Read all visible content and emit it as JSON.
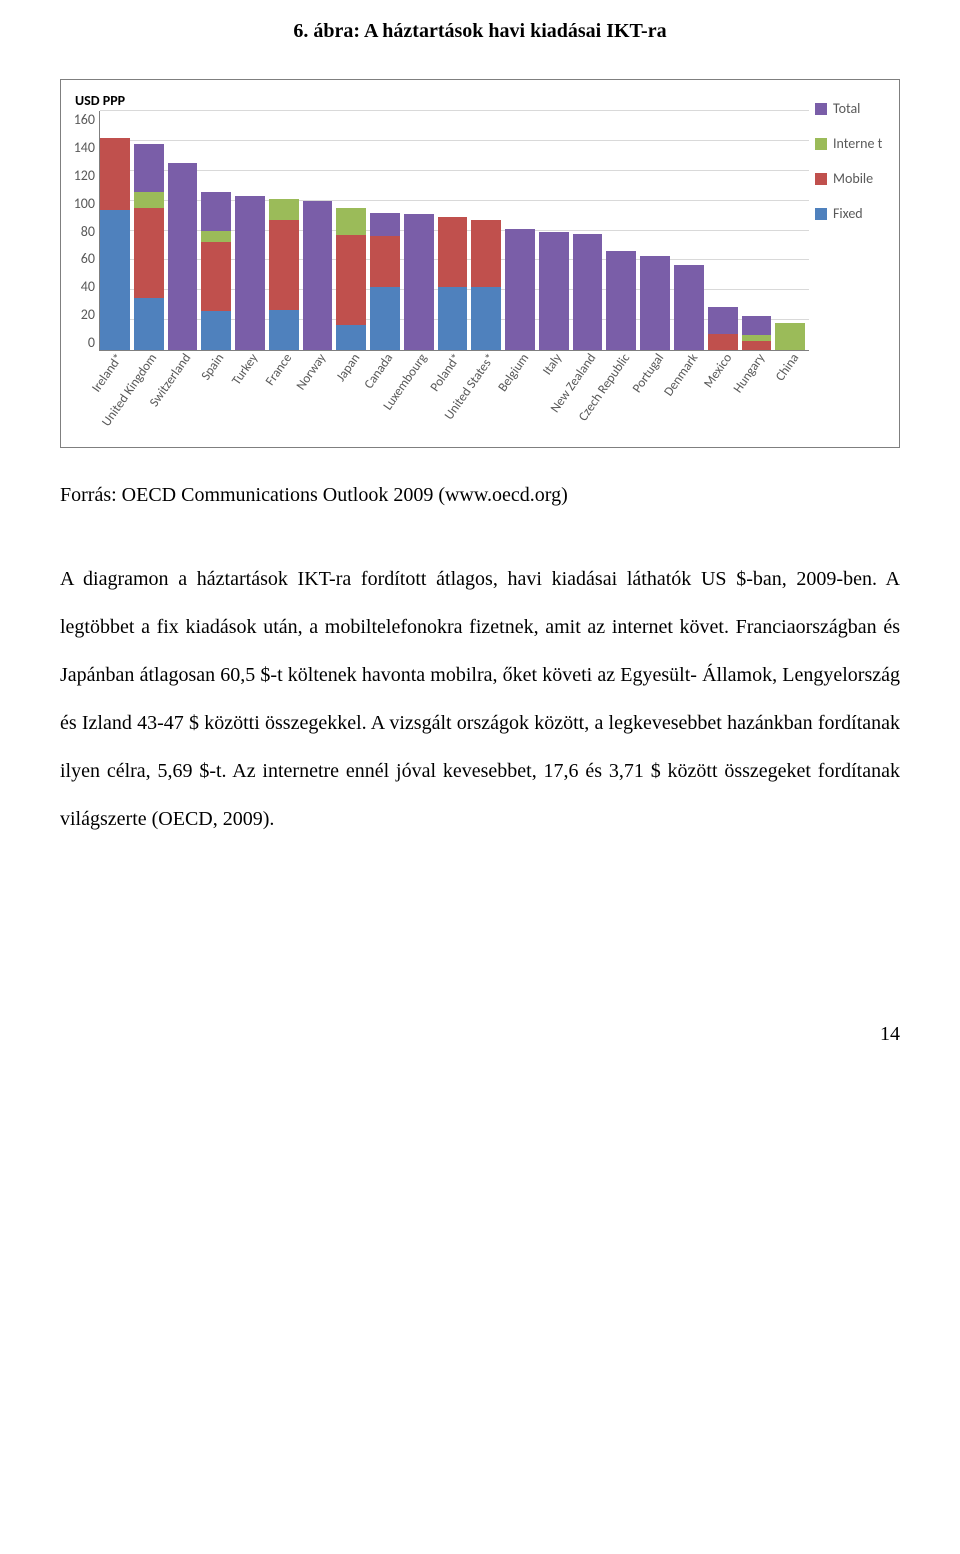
{
  "title": "6. ábra: A háztartások havi kiadásai IKT-ra",
  "chart": {
    "type": "bar-stacked",
    "y_axis_label": "USD PPP",
    "ymax": 160,
    "yticks": [
      160,
      140,
      120,
      100,
      80,
      60,
      40,
      20,
      0
    ],
    "grid_color": "#d9d9d9",
    "axis_line_color": "#7f7f7f",
    "background_color": "#ffffff",
    "tick_font_color": "#595959",
    "legend": [
      {
        "label": "Total",
        "color": "#7a5ea8"
      },
      {
        "label": "Interne t",
        "color": "#9bbb59"
      },
      {
        "label": "Mobile",
        "color": "#c0504d"
      },
      {
        "label": "Fixed",
        "color": "#4f81bd"
      }
    ],
    "series_colors": {
      "fixed": "#4f81bd",
      "mobile": "#c0504d",
      "internet": "#9bbb59",
      "total": "#7a5ea8"
    },
    "categories": [
      "Ireland*",
      "United Kingdom",
      "Switzerland",
      "Spain",
      "Turkey",
      "France",
      "Norway",
      "Japan",
      "Canada",
      "Luxembourg",
      "Poland*",
      "United States*",
      "Belgium",
      "Italy",
      "New Zealand",
      "Czech Republic",
      "Portugal",
      "Denmark",
      "Mexico",
      "Hungary",
      "China"
    ],
    "data": [
      {
        "fixed": 94,
        "mobile": 48,
        "internet": 0,
        "total": 0
      },
      {
        "fixed": 35,
        "mobile": 60,
        "internet": 11,
        "total": 32
      },
      {
        "fixed": 0,
        "mobile": 0,
        "internet": 0,
        "total": 125
      },
      {
        "fixed": 26,
        "mobile": 46,
        "internet": 8,
        "total": 26
      },
      {
        "fixed": 0,
        "mobile": 0,
        "internet": 0,
        "total": 103
      },
      {
        "fixed": 27,
        "mobile": 60,
        "internet": 14,
        "total": 0
      },
      {
        "fixed": 0,
        "mobile": 0,
        "internet": 0,
        "total": 100
      },
      {
        "fixed": 17,
        "mobile": 60,
        "internet": 18,
        "total": 0
      },
      {
        "fixed": 42,
        "mobile": 34,
        "internet": 0,
        "total": 16
      },
      {
        "fixed": 0,
        "mobile": 0,
        "internet": 0,
        "total": 91
      },
      {
        "fixed": 42,
        "mobile": 47,
        "internet": 0,
        "total": 0
      },
      {
        "fixed": 42,
        "mobile": 45,
        "internet": 0,
        "total": 0
      },
      {
        "fixed": 0,
        "mobile": 0,
        "internet": 0,
        "total": 81
      },
      {
        "fixed": 0,
        "mobile": 0,
        "internet": 0,
        "total": 79
      },
      {
        "fixed": 0,
        "mobile": 0,
        "internet": 0,
        "total": 78
      },
      {
        "fixed": 0,
        "mobile": 0,
        "internet": 0,
        "total": 66
      },
      {
        "fixed": 0,
        "mobile": 0,
        "internet": 0,
        "total": 63
      },
      {
        "fixed": 0,
        "mobile": 0,
        "internet": 0,
        "total": 57
      },
      {
        "fixed": 0,
        "mobile": 11,
        "internet": 0,
        "total": 18
      },
      {
        "fixed": 0,
        "mobile": 6,
        "internet": 4,
        "total": 13
      },
      {
        "fixed": 0,
        "mobile": 0,
        "internet": 18,
        "total": 0
      }
    ]
  },
  "source_line": "Forrás: OECD Communications Outlook 2009 (www.oecd.org)",
  "body_text": "A diagramon a háztartások IKT-ra fordított átlagos, havi kiadásai láthatók US $-ban, 2009-ben. A legtöbbet a fix kiadások után, a mobiltelefonokra fizetnek, amit az internet követ. Franciaországban és Japánban átlagosan 60,5 $-t költenek havonta mobilra, őket követi az Egyesült- Államok, Lengyelország és Izland 43-47 $ közötti összegekkel. A vizsgált országok között, a legkevesebbet hazánkban fordítanak ilyen célra, 5,69 $-t. Az internetre ennél jóval kevesebbet, 17,6 és 3,71 $ között összegeket fordítanak világszerte (OECD, 2009).",
  "page_number": "14"
}
